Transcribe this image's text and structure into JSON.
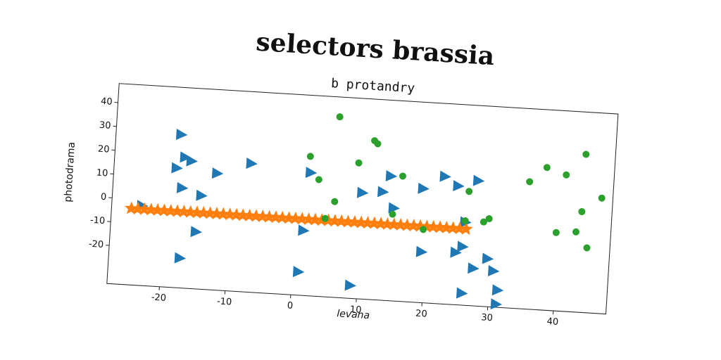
{
  "chart_data": {
    "type": "scatter",
    "title": "selectors brassia",
    "subtitle": "b protandry",
    "x_label": "levana",
    "y_label": "photodrama",
    "xlim": [
      -28,
      48
    ],
    "ylim": [
      -36,
      48
    ],
    "xticks": [
      -20,
      -10,
      0,
      10,
      20,
      30,
      40
    ],
    "yticks": [
      -20,
      -10,
      0,
      10,
      20,
      30,
      40
    ],
    "series": [
      {
        "color": "#1f77b4",
        "marker": "triangle-right",
        "x": [
          -18.1,
          -17.3,
          -16.3,
          -18.5,
          -12.3,
          -7.2,
          -17.5,
          -14.5,
          -23.4,
          -15,
          -17.2,
          1.9,
          1.3,
          0.9,
          8.9,
          9.9,
          13,
          14.1,
          14.8,
          19.1,
          19.4,
          22.3,
          24.4,
          27.4,
          25.6,
          24.6,
          25.8,
          27.4,
          25.9,
          29.5,
          30.5,
          31.3,
          31.2
        ],
        "values": [
          28.2,
          18.8,
          17.4,
          14.1,
          12.9,
          17.9,
          5.9,
          3.2,
          -2.6,
          -12.1,
          -23.5,
          15.6,
          -8.8,
          -26.2,
          -30.6,
          8.5,
          9.4,
          16.2,
          2.9,
          11.8,
          -14.7,
          17.4,
          13.8,
          16.5,
          -11.5,
          -14.1,
          -1.2,
          -20.3,
          -31,
          -15.9,
          -20.9,
          -28.8,
          -34.7
        ]
      },
      {
        "color": "#ff7f0e",
        "marker": "star",
        "x": [
          -25,
          -24,
          -23,
          -22,
          -21,
          -20,
          -19,
          -18,
          -17,
          -16,
          -15,
          -14,
          -13,
          -12,
          -11,
          -10,
          -9,
          -8,
          -7,
          -6,
          -5,
          -4,
          -3,
          -2,
          -1,
          0,
          1,
          2,
          3,
          4,
          5,
          6,
          7,
          8,
          9,
          10,
          11,
          12,
          13,
          14,
          15,
          16,
          17,
          18,
          19,
          20,
          21,
          22,
          23,
          24,
          25,
          26
        ],
        "values": [
          -4,
          -4,
          -4,
          -4,
          -4,
          -4,
          -4,
          -4,
          -4,
          -4,
          -4,
          -4,
          -4,
          -4,
          -4,
          -4,
          -4,
          -4,
          -4,
          -4,
          -4,
          -4,
          -4,
          -4,
          -4,
          -4,
          -4,
          -4,
          -4,
          -4,
          -4,
          -4,
          -4,
          -4,
          -4,
          -4,
          -4,
          -4,
          -4,
          -4,
          -4,
          -4,
          -4,
          -4,
          -4,
          -4,
          -4,
          -4,
          -4,
          -4,
          -4,
          -4
        ]
      },
      {
        "color": "#2ca02c",
        "marker": "circle",
        "x": [
          5.8,
          1.7,
          3.2,
          9.1,
          11.3,
          11.8,
          15.9,
          5.8,
          4.5,
          14.7,
          19.5,
          26.1,
          25.8,
          28.6,
          29.4,
          35.2,
          37.7,
          40.7,
          39.7,
          43.5,
          43.4,
          42.7,
          44.5,
          46.3
        ],
        "values": [
          39.7,
          22.4,
          12.9,
          20.9,
          30.6,
          29.4,
          16.5,
          4.1,
          -3.2,
          0.3,
          -5.3,
          11.8,
          -0.6,
          -0.6,
          0.9,
          17.4,
          23.8,
          21.2,
          -3.2,
          30.3,
          6.2,
          -2.4,
          -8.8,
          12.4
        ]
      }
    ]
  }
}
